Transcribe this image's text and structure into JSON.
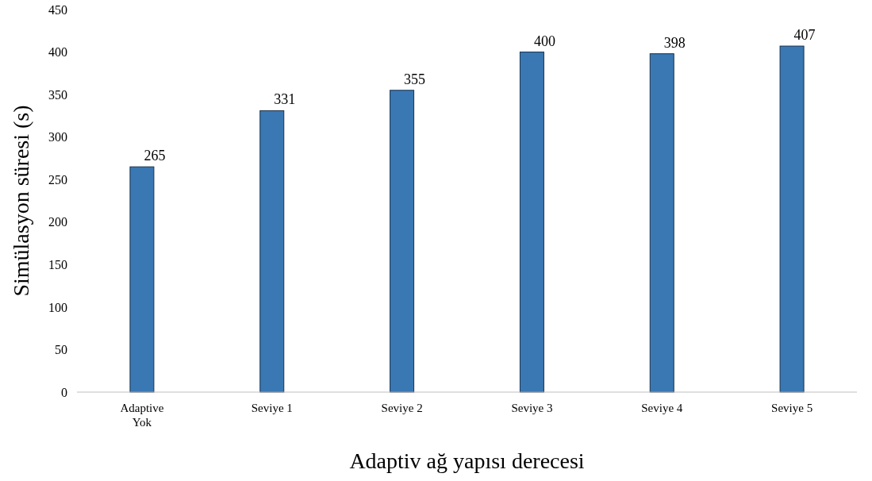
{
  "chart_data": {
    "type": "bar",
    "xlabel": "Adaptiv ağ yapısı derecesi",
    "ylabel": "Simülasyon süresi (s)",
    "categories": [
      "Adaptive Yok",
      "Seviye 1",
      "Seviye 2",
      "Seviye 3",
      "Seviye 4",
      "Seviye 5"
    ],
    "values": [
      265,
      331,
      355,
      400,
      398,
      407
    ],
    "color": "#3a78b4",
    "ylim": [
      0,
      450
    ],
    "yticks": [
      0,
      50,
      100,
      150,
      200,
      250,
      300,
      350,
      400,
      450
    ],
    "grid": false,
    "data_labels": true
  }
}
